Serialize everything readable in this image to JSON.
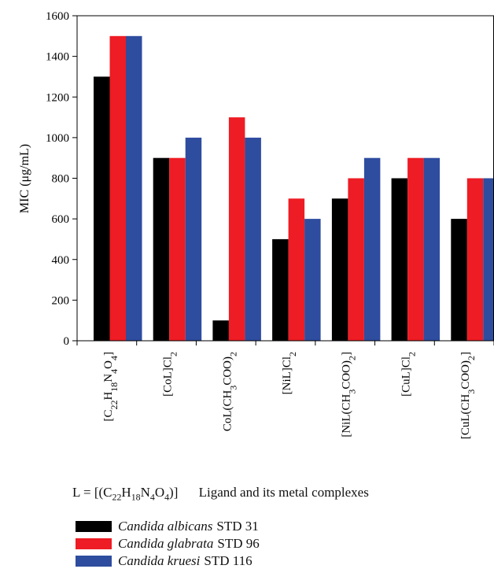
{
  "chart_data": {
    "type": "bar",
    "ylabel": "MIC (μg/mL)",
    "ylim": [
      0,
      1600
    ],
    "yticks": [
      0,
      200,
      400,
      600,
      800,
      1000,
      1200,
      1400,
      1600
    ],
    "grid": false,
    "legend_position": "bottom-left",
    "categories": [
      "[C22H18N4O4]",
      "[CoL]Cl2",
      "CoL(CH3COO)2",
      "[NiL]Cl2",
      "[NiL(CH3COO)2]",
      "[CuL]Cl2",
      "[CuL(CH3COO)2]"
    ],
    "series": [
      {
        "name": "Candida albicans STD 31",
        "color": "#000000",
        "values": [
          1300,
          900,
          100,
          500,
          700,
          800,
          600
        ]
      },
      {
        "name": "Candida glabrata STD 96",
        "color": "#ee1c24",
        "values": [
          1500,
          900,
          1100,
          700,
          800,
          900,
          800
        ]
      },
      {
        "name": "Candida kruesi STD 116",
        "color": "#2e4d9f",
        "values": [
          1500,
          1000,
          1000,
          600,
          900,
          900,
          800
        ]
      }
    ]
  },
  "footer": {
    "ligand_definition": "L = [(C22H18N4O4)]",
    "description": "Ligand and its metal complexes"
  },
  "legend": {
    "items": [
      {
        "species": "Candida albicans",
        "code": "STD 31",
        "color": "#000000"
      },
      {
        "species": "Candida glabrata",
        "code": "STD 96",
        "color": "#ee1c24"
      },
      {
        "species": "Candida kruesi",
        "code": "STD 116",
        "color": "#2e4d9f"
      }
    ]
  }
}
